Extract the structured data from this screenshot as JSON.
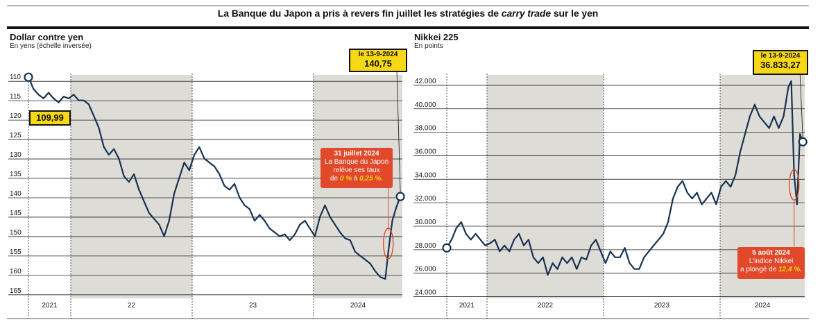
{
  "title_pre": "La Banque du Japon a pris à revers fin juillet les stratégies de ",
  "title_em": "carry trade",
  "title_post": " sur le yen",
  "left": {
    "title": "Dollar contre yen",
    "subtitle": "En yens (échelle inversée)",
    "start_label": "109,99",
    "end_date": "le 13-9-2024",
    "end_value": "140,75",
    "note_title": "31 juillet 2024",
    "note_line1": "La Banque du Japon",
    "note_line2": "relève ses taux",
    "note_pre": "de ",
    "note_from": "0 %",
    "note_mid": " à ",
    "note_to": "0,25 %."
  },
  "right": {
    "title": "Nikkei 225",
    "subtitle": "En points",
    "end_date": "le 13-9-2024",
    "end_value": "36.833,27",
    "note_title": "5 août 2024",
    "note_line1": "L'indice Nikkei",
    "note_pre": "a plongé de ",
    "note_value": "12,4 %."
  },
  "colors": {
    "line": "#163250",
    "shade": "#dedcd7",
    "callout": "#f6d816",
    "alert": "#e2482a"
  },
  "chart_data": [
    {
      "type": "line",
      "title": "Dollar contre yen",
      "ylabel": "En yens (échelle inversée)",
      "inverted": true,
      "ylim": [
        108,
        167
      ],
      "yticks": [
        110,
        115,
        120,
        125,
        130,
        135,
        140,
        145,
        150,
        155,
        160,
        165
      ],
      "x_labels": [
        "2021",
        "22",
        "23",
        "2024"
      ],
      "x_range": [
        2021.0,
        2024.72
      ],
      "shaded_years": [
        "22",
        "2024"
      ],
      "series": [
        {
          "x": [
            2021.0,
            2021.05,
            2021.1,
            2021.15,
            2021.2,
            2021.25,
            2021.3,
            2021.35,
            2021.4,
            2021.45,
            2021.5,
            2021.55,
            2021.6,
            2021.65,
            2021.7,
            2021.75,
            2021.8,
            2021.85,
            2021.9,
            2021.95,
            2022.0,
            2022.05,
            2022.1,
            2022.15,
            2022.2,
            2022.25,
            2022.3,
            2022.35,
            2022.4,
            2022.45,
            2022.5,
            2022.55,
            2022.6,
            2022.65,
            2022.7,
            2022.75,
            2022.8,
            2022.85,
            2022.9,
            2022.95,
            2023.0,
            2023.05,
            2023.1,
            2023.15,
            2023.2,
            2023.25,
            2023.3,
            2023.35,
            2023.4,
            2023.45,
            2023.5,
            2023.55,
            2023.6,
            2023.65,
            2023.7,
            2023.75,
            2023.8,
            2023.85,
            2023.9,
            2023.95,
            2024.0,
            2024.05,
            2024.1,
            2024.15,
            2024.2,
            2024.25,
            2024.3,
            2024.35,
            2024.4,
            2024.45,
            2024.5,
            2024.55,
            2024.58,
            2024.62,
            2024.66,
            2024.7
          ],
          "y": [
            110.0,
            113.0,
            114.5,
            115.5,
            114.0,
            115.5,
            116.5,
            115.0,
            115.5,
            114.5,
            116.0,
            116.0,
            117.0,
            120.0,
            123.0,
            128.0,
            130.0,
            128.5,
            131.0,
            135.5,
            137.0,
            135.0,
            139.0,
            142.0,
            145.0,
            146.5,
            148.0,
            151.0,
            147.0,
            140.0,
            136.0,
            132.0,
            134.0,
            130.0,
            128.0,
            131.0,
            132.0,
            133.0,
            135.0,
            138.0,
            139.0,
            137.5,
            141.0,
            143.0,
            144.0,
            147.0,
            145.5,
            147.0,
            149.0,
            150.0,
            151.0,
            150.5,
            152.0,
            150.5,
            148.0,
            147.0,
            149.0,
            151.0,
            146.0,
            143.0,
            146.0,
            148.0,
            150.0,
            151.5,
            152.0,
            155.0,
            156.0,
            157.0,
            158.0,
            160.0,
            161.5,
            162.0,
            155.0,
            147.0,
            143.5,
            140.75
          ]
        }
      ],
      "annotations": [
        {
          "text": "109,99",
          "x": 2021.0,
          "y": 109.99
        },
        {
          "text": "le 13-9-2024 140,75",
          "x": 2024.7,
          "y": 140.75
        },
        {
          "text": "31 juillet 2024 La Banque du Japon relève ses taux de 0 % à 0,25 %.",
          "x": 2024.58
        }
      ]
    },
    {
      "type": "line",
      "title": "Nikkei 225",
      "ylabel": "En points",
      "ylim": [
        23500,
        43000
      ],
      "yticks": [
        24000,
        26000,
        28000,
        30000,
        32000,
        34000,
        36000,
        38000,
        40000,
        42000
      ],
      "ytick_labels": [
        "24.000",
        "26.000",
        "28.000",
        "30.000",
        "32.000",
        "34.000",
        "36.000",
        "38.000",
        "40.000",
        "42.000"
      ],
      "x_labels": [
        "2021",
        "2022",
        "2023",
        "2024"
      ],
      "x_range": [
        2021.0,
        2024.72
      ],
      "shaded_years": [
        "2022",
        "2024"
      ],
      "series": [
        {
          "x": [
            2021.0,
            2021.05,
            2021.1,
            2021.15,
            2021.2,
            2021.25,
            2021.3,
            2021.35,
            2021.4,
            2021.45,
            2021.5,
            2021.55,
            2021.6,
            2021.65,
            2021.7,
            2021.75,
            2021.8,
            2021.85,
            2021.9,
            2021.95,
            2022.0,
            2022.05,
            2022.1,
            2022.15,
            2022.2,
            2022.25,
            2022.3,
            2022.35,
            2022.4,
            2022.45,
            2022.5,
            2022.55,
            2022.6,
            2022.65,
            2022.7,
            2022.75,
            2022.8,
            2022.85,
            2022.9,
            2022.95,
            2023.0,
            2023.05,
            2023.1,
            2023.15,
            2023.2,
            2023.25,
            2023.3,
            2023.35,
            2023.4,
            2023.45,
            2023.5,
            2023.55,
            2023.6,
            2023.65,
            2023.7,
            2023.75,
            2023.8,
            2023.85,
            2023.9,
            2023.95,
            2024.0,
            2024.05,
            2024.1,
            2024.15,
            2024.2,
            2024.25,
            2024.3,
            2024.35,
            2024.4,
            2024.45,
            2024.5,
            2024.55,
            2024.58,
            2024.61,
            2024.64,
            2024.67,
            2024.7
          ],
          "y": [
            27800,
            28500,
            29500,
            30000,
            29000,
            28500,
            29000,
            28500,
            28000,
            28200,
            28500,
            27500,
            28000,
            27500,
            28500,
            29000,
            28000,
            28500,
            27000,
            26500,
            27000,
            25500,
            26500,
            26000,
            27000,
            26500,
            27000,
            26000,
            27000,
            26800,
            28000,
            28500,
            27500,
            26500,
            27500,
            27000,
            27000,
            27800,
            26500,
            26000,
            26000,
            27000,
            27500,
            28000,
            28500,
            29000,
            30000,
            32000,
            33000,
            33500,
            32500,
            32000,
            32500,
            31500,
            32000,
            32500,
            31500,
            33000,
            33500,
            33000,
            34000,
            36000,
            37500,
            39000,
            40000,
            39000,
            38500,
            38000,
            39000,
            38000,
            39000,
            41500,
            42000,
            34000,
            31500,
            37500,
            36833.27
          ]
        }
      ],
      "annotations": [
        {
          "text": "le 13-9-2024 36.833,27",
          "x": 2024.7,
          "y": 36833.27
        },
        {
          "text": "5 août 2024 L'indice Nikkei a plongé de 12,4 %.",
          "x": 2024.61
        }
      ]
    }
  ]
}
